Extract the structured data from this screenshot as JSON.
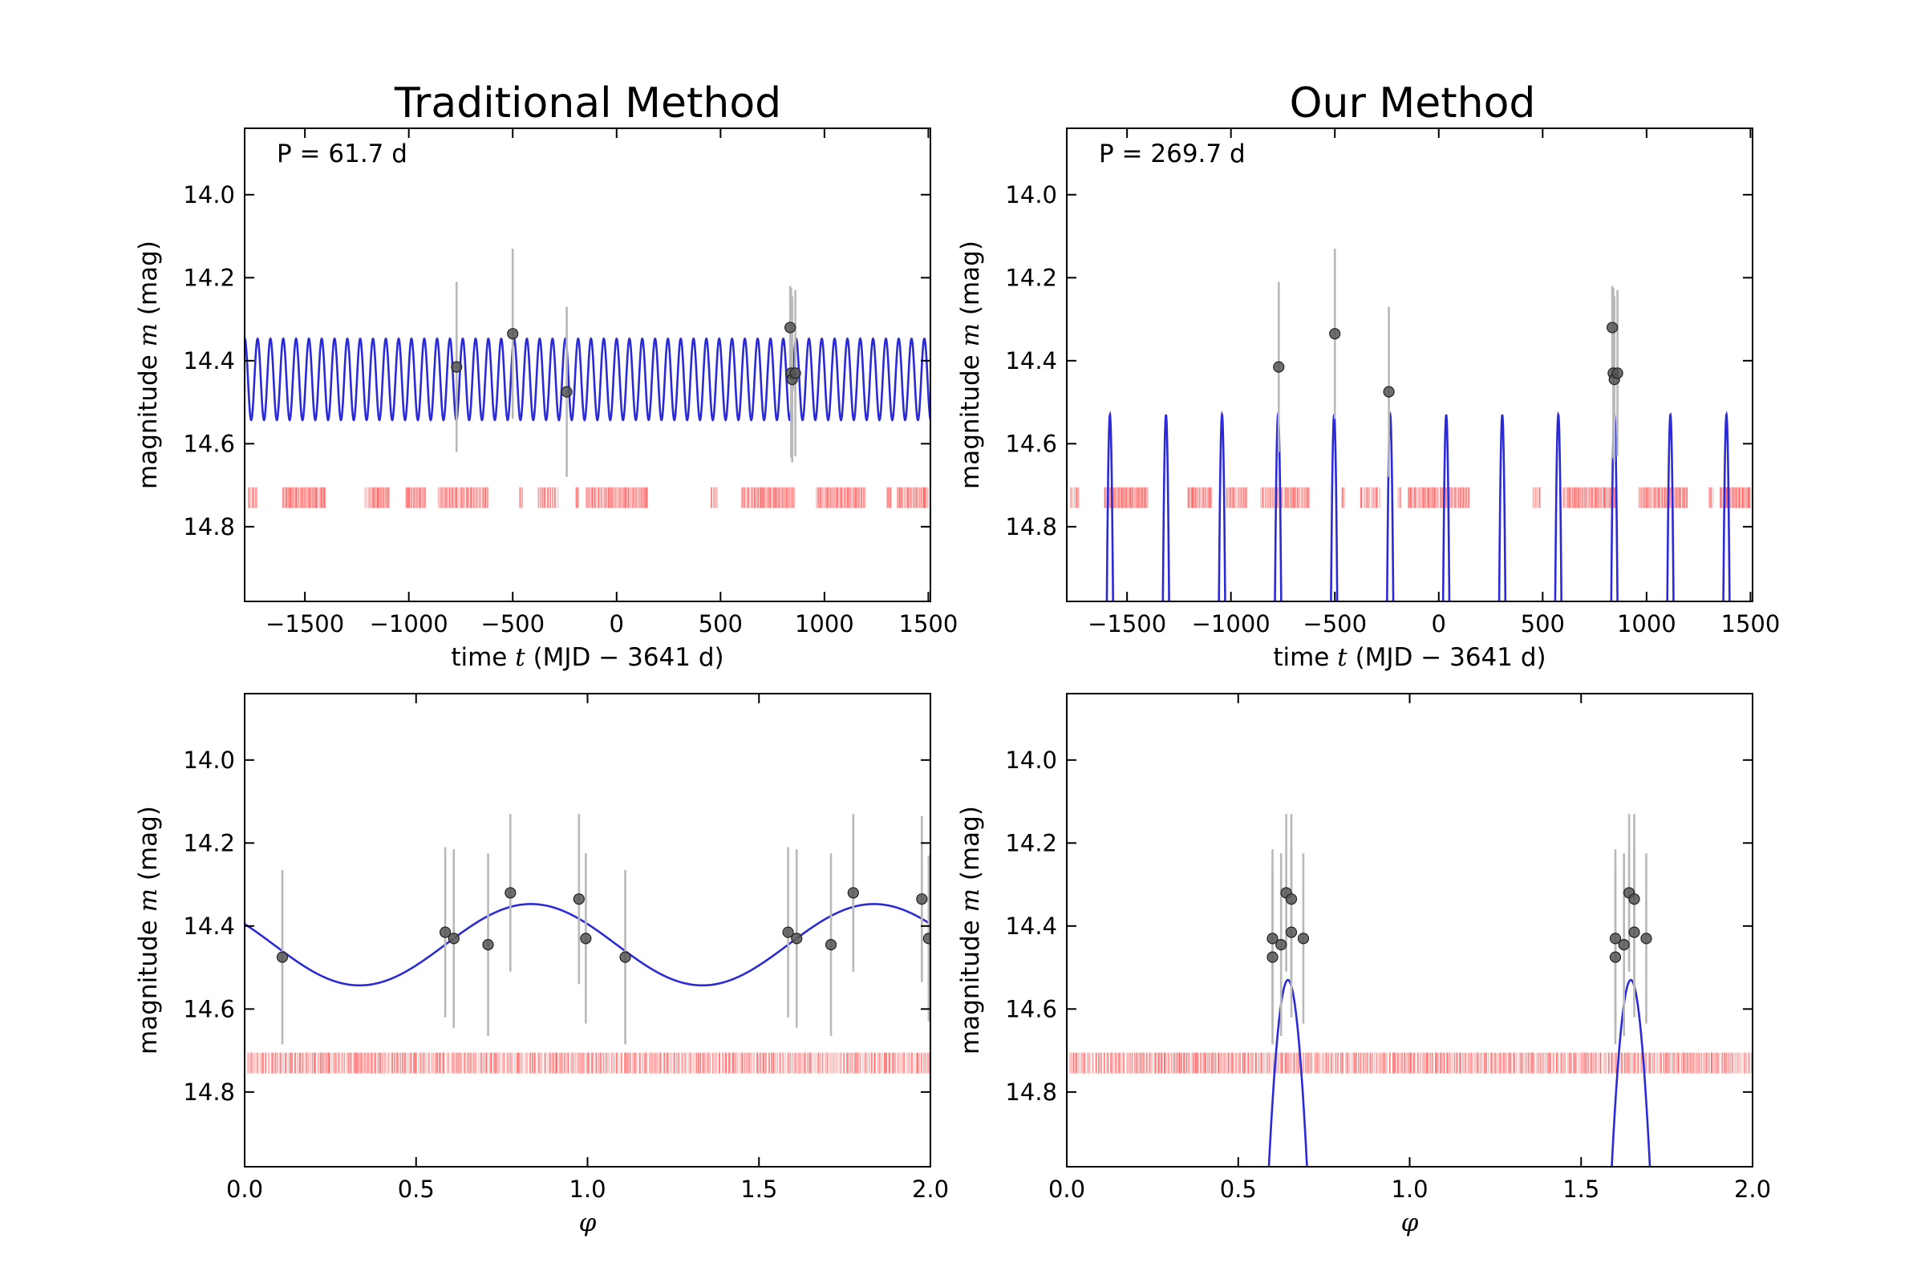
{
  "column_titles": [
    "Traditional Method",
    "Our Method"
  ],
  "colors": {
    "model_curve": "#2b2bd6",
    "data_points": "#555555",
    "error_bars": "#b8b8b8",
    "sampling_marks": "#ff4a4a",
    "axes": "#000000"
  },
  "chart_data": [
    {
      "id": "traditional-time",
      "type": "line",
      "column": 0,
      "row": 0,
      "annotation": "P = 61.7 d",
      "period_days": 61.7,
      "model": {
        "mean": 14.445,
        "amplitude": 0.098,
        "shape": "sinusoid"
      },
      "xlabel": {
        "prefix": "time ",
        "symbol": "t",
        "suffix": " (MJD − 3641 d)"
      },
      "ylabel": {
        "prefix": "magnitude ",
        "symbol": "m",
        "suffix": " (mag)"
      },
      "xlim": [
        -1790,
        1510
      ],
      "ylim": [
        14.98,
        13.84
      ],
      "y_inverted": true,
      "xticks": [
        -1500,
        -1000,
        -500,
        0,
        500,
        1000,
        1500
      ],
      "xtick_labels": [
        "−1500",
        "−1000",
        "−500",
        "0",
        "500",
        "1000",
        "1500"
      ],
      "yticks": [
        14.0,
        14.2,
        14.4,
        14.6,
        14.8
      ],
      "ytick_labels": [
        "14.0",
        "14.2",
        "14.4",
        "14.6",
        "14.8"
      ],
      "observations": [
        {
          "x": -770,
          "y": 14.415,
          "err": 0.205
        },
        {
          "x": -500,
          "y": 14.335,
          "err": 0.205
        },
        {
          "x": -240,
          "y": 14.475,
          "err": 0.205
        },
        {
          "x": 835,
          "y": 14.32,
          "err": 0.1
        },
        {
          "x": 840,
          "y": 14.43,
          "err": 0.205
        },
        {
          "x": 845,
          "y": 14.445,
          "err": 0.2
        },
        {
          "x": 860,
          "y": 14.43,
          "err": 0.2
        }
      ],
      "sampling_clusters": [
        [
          -1770,
          -1730,
          6
        ],
        [
          -1610,
          -1400,
          45
        ],
        [
          -1210,
          -1090,
          20
        ],
        [
          -1020,
          -920,
          18
        ],
        [
          -860,
          -620,
          42
        ],
        [
          -470,
          -450,
          3
        ],
        [
          -380,
          -280,
          12
        ],
        [
          -200,
          -180,
          3
        ],
        [
          -150,
          150,
          55
        ],
        [
          450,
          490,
          6
        ],
        [
          600,
          860,
          48
        ],
        [
          960,
          1200,
          44
        ],
        [
          1300,
          1320,
          4
        ],
        [
          1350,
          1500,
          28
        ]
      ],
      "sampling_y_range": [
        14.705,
        14.755
      ]
    },
    {
      "id": "our-time",
      "type": "line",
      "column": 1,
      "row": 0,
      "annotation": "P = 269.7 d",
      "period_days": 269.7,
      "model": {
        "peak": 14.53,
        "peak_time": 845,
        "shape": "periodic-arch",
        "half_width_phase": 0.055
      },
      "xlabel": {
        "prefix": "time ",
        "symbol": "t",
        "suffix": " (MJD − 3641 d)"
      },
      "ylabel": {
        "prefix": "magnitude ",
        "symbol": "m",
        "suffix": " (mag)"
      },
      "xlim": [
        -1790,
        1510
      ],
      "ylim": [
        14.98,
        13.84
      ],
      "y_inverted": true,
      "xticks": [
        -1500,
        -1000,
        -500,
        0,
        500,
        1000,
        1500
      ],
      "xtick_labels": [
        "−1500",
        "−1000",
        "−500",
        "0",
        "500",
        "1000",
        "1500"
      ],
      "yticks": [
        14.0,
        14.2,
        14.4,
        14.6,
        14.8
      ],
      "ytick_labels": [
        "14.0",
        "14.2",
        "14.4",
        "14.6",
        "14.8"
      ],
      "observations": [
        {
          "x": -770,
          "y": 14.415,
          "err": 0.205
        },
        {
          "x": -500,
          "y": 14.335,
          "err": 0.205
        },
        {
          "x": -240,
          "y": 14.475,
          "err": 0.205
        },
        {
          "x": 835,
          "y": 14.32,
          "err": 0.1
        },
        {
          "x": 840,
          "y": 14.43,
          "err": 0.205
        },
        {
          "x": 845,
          "y": 14.445,
          "err": 0.2
        },
        {
          "x": 860,
          "y": 14.43,
          "err": 0.2
        }
      ],
      "sampling_clusters": [
        [
          -1770,
          -1730,
          6
        ],
        [
          -1610,
          -1400,
          45
        ],
        [
          -1210,
          -1090,
          20
        ],
        [
          -1020,
          -920,
          18
        ],
        [
          -860,
          -620,
          42
        ],
        [
          -470,
          -450,
          3
        ],
        [
          -380,
          -280,
          12
        ],
        [
          -200,
          -180,
          3
        ],
        [
          -150,
          150,
          55
        ],
        [
          450,
          490,
          6
        ],
        [
          600,
          860,
          48
        ],
        [
          960,
          1200,
          44
        ],
        [
          1300,
          1320,
          4
        ],
        [
          1350,
          1500,
          28
        ]
      ],
      "sampling_y_range": [
        14.705,
        14.755
      ]
    },
    {
      "id": "traditional-phase",
      "type": "line",
      "column": 0,
      "row": 1,
      "model": {
        "mean": 14.445,
        "amplitude": 0.098,
        "peak_phase": 0.835,
        "shape": "sinusoid"
      },
      "xlabel": {
        "prefix": "",
        "symbol": "φ",
        "suffix": ""
      },
      "ylabel": {
        "prefix": "magnitude ",
        "symbol": "m",
        "suffix": " (mag)"
      },
      "xlim": [
        0.0,
        2.0
      ],
      "ylim": [
        14.98,
        13.84
      ],
      "y_inverted": true,
      "xticks": [
        0.0,
        0.5,
        1.0,
        1.5,
        2.0
      ],
      "xtick_labels": [
        "0.0",
        "0.5",
        "1.0",
        "1.5",
        "2.0"
      ],
      "yticks": [
        14.0,
        14.2,
        14.4,
        14.6,
        14.8
      ],
      "ytick_labels": [
        "14.0",
        "14.2",
        "14.4",
        "14.6",
        "14.8"
      ],
      "observations": [
        {
          "x": 0.11,
          "y": 14.475,
          "err": 0.21
        },
        {
          "x": 0.585,
          "y": 14.415,
          "err": 0.205
        },
        {
          "x": 0.61,
          "y": 14.43,
          "err": 0.215
        },
        {
          "x": 0.71,
          "y": 14.445,
          "err": 0.22
        },
        {
          "x": 0.775,
          "y": 14.32,
          "err": 0.19
        },
        {
          "x": 0.975,
          "y": 14.335,
          "err": 0.205
        },
        {
          "x": 0.995,
          "y": 14.43,
          "err": 0.205
        },
        {
          "x": 1.11,
          "y": 14.475,
          "err": 0.21
        },
        {
          "x": 1.585,
          "y": 14.415,
          "err": 0.205
        },
        {
          "x": 1.61,
          "y": 14.43,
          "err": 0.215
        },
        {
          "x": 1.71,
          "y": 14.445,
          "err": 0.22
        },
        {
          "x": 1.775,
          "y": 14.32,
          "err": 0.19
        },
        {
          "x": 1.975,
          "y": 14.335,
          "err": 0.2
        },
        {
          "x": 1.995,
          "y": 14.43,
          "err": 0.2
        }
      ],
      "sampling_clusters": [
        [
          0.0,
          2.0,
          420
        ]
      ],
      "sampling_y_range": [
        14.705,
        14.755
      ]
    },
    {
      "id": "our-phase",
      "type": "line",
      "column": 1,
      "row": 1,
      "model": {
        "peak": 14.53,
        "peak_phase": 0.645,
        "shape": "periodic-arch",
        "half_width_phase": 0.055
      },
      "xlabel": {
        "prefix": "",
        "symbol": "φ",
        "suffix": ""
      },
      "ylabel": {
        "prefix": "magnitude ",
        "symbol": "m",
        "suffix": " (mag)"
      },
      "xlim": [
        0.0,
        2.0
      ],
      "ylim": [
        14.98,
        13.84
      ],
      "y_inverted": true,
      "xticks": [
        0.0,
        0.5,
        1.0,
        1.5,
        2.0
      ],
      "xtick_labels": [
        "0.0",
        "0.5",
        "1.0",
        "1.5",
        "2.0"
      ],
      "yticks": [
        14.0,
        14.2,
        14.4,
        14.6,
        14.8
      ],
      "ytick_labels": [
        "14.0",
        "14.2",
        "14.4",
        "14.6",
        "14.8"
      ],
      "observations": [
        {
          "x": 0.6,
          "y": 14.475,
          "err": 0.21
        },
        {
          "x": 0.6,
          "y": 14.43,
          "err": 0.215
        },
        {
          "x": 0.625,
          "y": 14.445,
          "err": 0.22
        },
        {
          "x": 0.64,
          "y": 14.32,
          "err": 0.19
        },
        {
          "x": 0.655,
          "y": 14.335,
          "err": 0.205
        },
        {
          "x": 0.655,
          "y": 14.415,
          "err": 0.205
        },
        {
          "x": 0.69,
          "y": 14.43,
          "err": 0.205
        },
        {
          "x": 1.6,
          "y": 14.475,
          "err": 0.21
        },
        {
          "x": 1.6,
          "y": 14.43,
          "err": 0.215
        },
        {
          "x": 1.625,
          "y": 14.445,
          "err": 0.22
        },
        {
          "x": 1.64,
          "y": 14.32,
          "err": 0.19
        },
        {
          "x": 1.655,
          "y": 14.335,
          "err": 0.205
        },
        {
          "x": 1.655,
          "y": 14.415,
          "err": 0.205
        },
        {
          "x": 1.69,
          "y": 14.43,
          "err": 0.205
        }
      ],
      "sampling_clusters": [
        [
          0.0,
          2.0,
          420
        ]
      ],
      "sampling_y_range": [
        14.705,
        14.755
      ]
    }
  ]
}
